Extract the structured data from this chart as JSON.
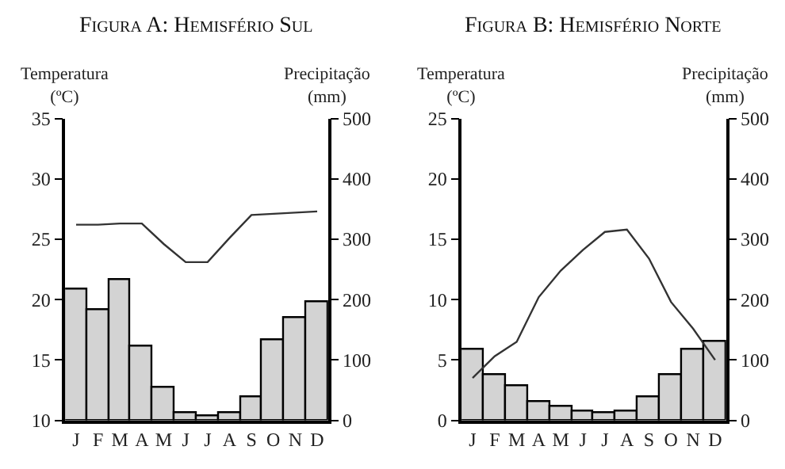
{
  "chart_data": [
    {
      "type": "bar",
      "title": "Figura A: Hemisfério Sul",
      "ylabel": "Temperatura\n(ºC)",
      "y2label": "Precipitação\n(mm)",
      "categories": [
        "J",
        "F",
        "M",
        "A",
        "M",
        "J",
        "J",
        "A",
        "S",
        "O",
        "N",
        "D"
      ],
      "series": [
        {
          "axis": "y2",
          "color": "#d3d3d3",
          "values": [
            217,
            183,
            232,
            122,
            54,
            13,
            6,
            13,
            39,
            133,
            170,
            196
          ]
        },
        {
          "type": "line",
          "axis": "y",
          "color": "#333333",
          "values": [
            26.2,
            26.2,
            26.3,
            26.3,
            24.6,
            23.1,
            23.1,
            25.1,
            27.0,
            27.1,
            27.2,
            27.3
          ]
        }
      ],
      "ylim": [
        10,
        35
      ],
      "yticks": [
        10,
        15,
        20,
        25,
        30,
        35
      ],
      "y2lim": [
        0,
        500
      ],
      "y2ticks": [
        0,
        100,
        200,
        300,
        400,
        500
      ]
    },
    {
      "type": "bar",
      "title": "Figura B: Hemisfério Norte",
      "ylabel": "Temperatura\n(ºC)",
      "y2label": "Precipitação\n(mm)",
      "categories": [
        "J",
        "F",
        "M",
        "A",
        "M",
        "J",
        "J",
        "A",
        "S",
        "O",
        "N",
        "D"
      ],
      "series": [
        {
          "axis": "y2",
          "color": "#d3d3d3",
          "values": [
            116,
            76,
            56,
            30,
            22,
            14,
            11,
            15,
            39,
            76,
            116,
            131
          ]
        },
        {
          "type": "line",
          "axis": "y",
          "color": "#333333",
          "values": [
            3.5,
            5.3,
            6.5,
            10.2,
            12.4,
            14.1,
            15.6,
            15.8,
            13.4,
            9.8,
            7.6,
            5.0
          ]
        }
      ],
      "ylim": [
        0,
        25
      ],
      "yticks": [
        0,
        5,
        10,
        15,
        20,
        25
      ],
      "y2lim": [
        0,
        500
      ],
      "y2ticks": [
        0,
        100,
        200,
        300,
        400,
        500
      ]
    }
  ]
}
